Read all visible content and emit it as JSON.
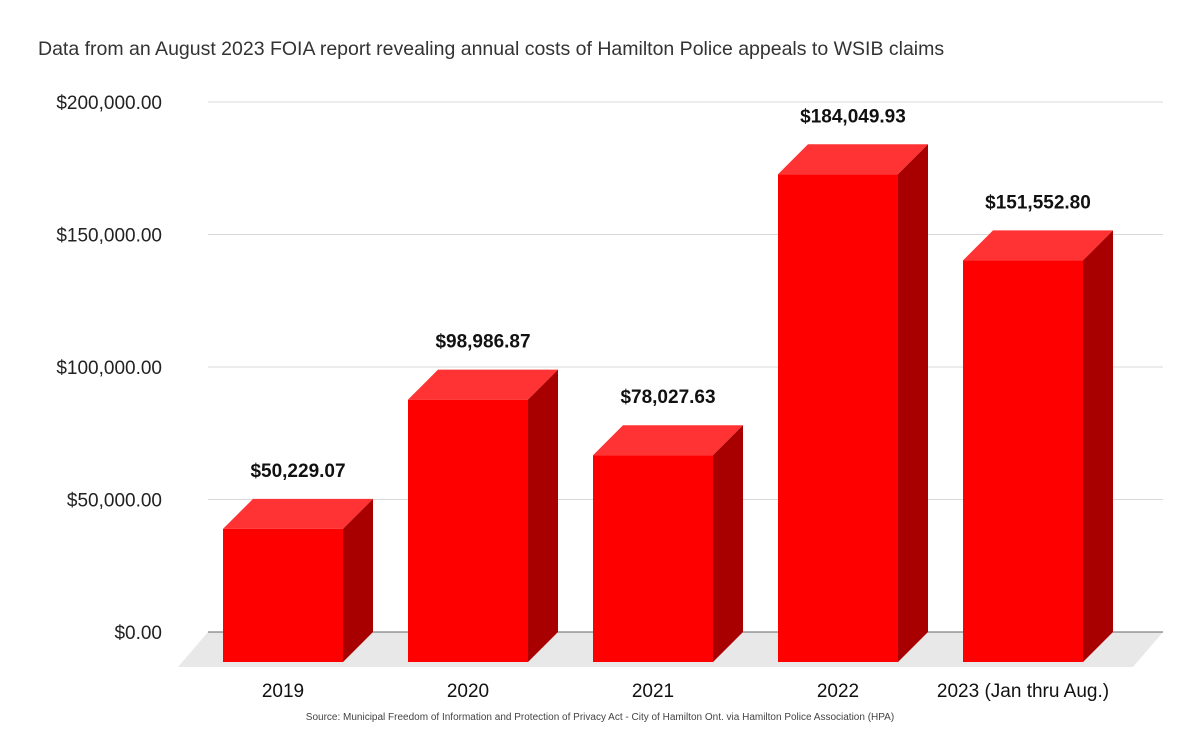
{
  "chart_data": {
    "type": "bar",
    "style": "3d",
    "title": "Data from an August 2023 FOIA report revealing annual costs of Hamilton Police appeals to WSIB claims",
    "source": "Source: Municipal Freedom of Information and Protection of Privacy Act - City of Hamilton Ont. via Hamilton Police Association (HPA)",
    "categories": [
      "2019",
      "2020",
      "2021",
      "2022",
      "2023 (Jan thru Aug.)"
    ],
    "values": [
      50229.07,
      98986.87,
      78027.63,
      184049.93,
      151552.8
    ],
    "data_labels": [
      "$50,229.07",
      "$98,986.87",
      "$78,027.63",
      "$184,049.93",
      "$151,552.80"
    ],
    "xlabel": "",
    "ylabel": "",
    "ylim": [
      0,
      200000
    ],
    "yticks": [
      0,
      50000,
      100000,
      150000,
      200000
    ],
    "ytick_labels": [
      "$0.00",
      "$50,000.00",
      "$100,000.00",
      "$150,000.00",
      "$200,000.00"
    ],
    "grid": true,
    "legend": "none",
    "colors": {
      "front": "#ff0000",
      "top": "#ff3333",
      "side": "#a80000",
      "floor": "#e8e8e8",
      "grid": "#d9d9d9"
    }
  }
}
